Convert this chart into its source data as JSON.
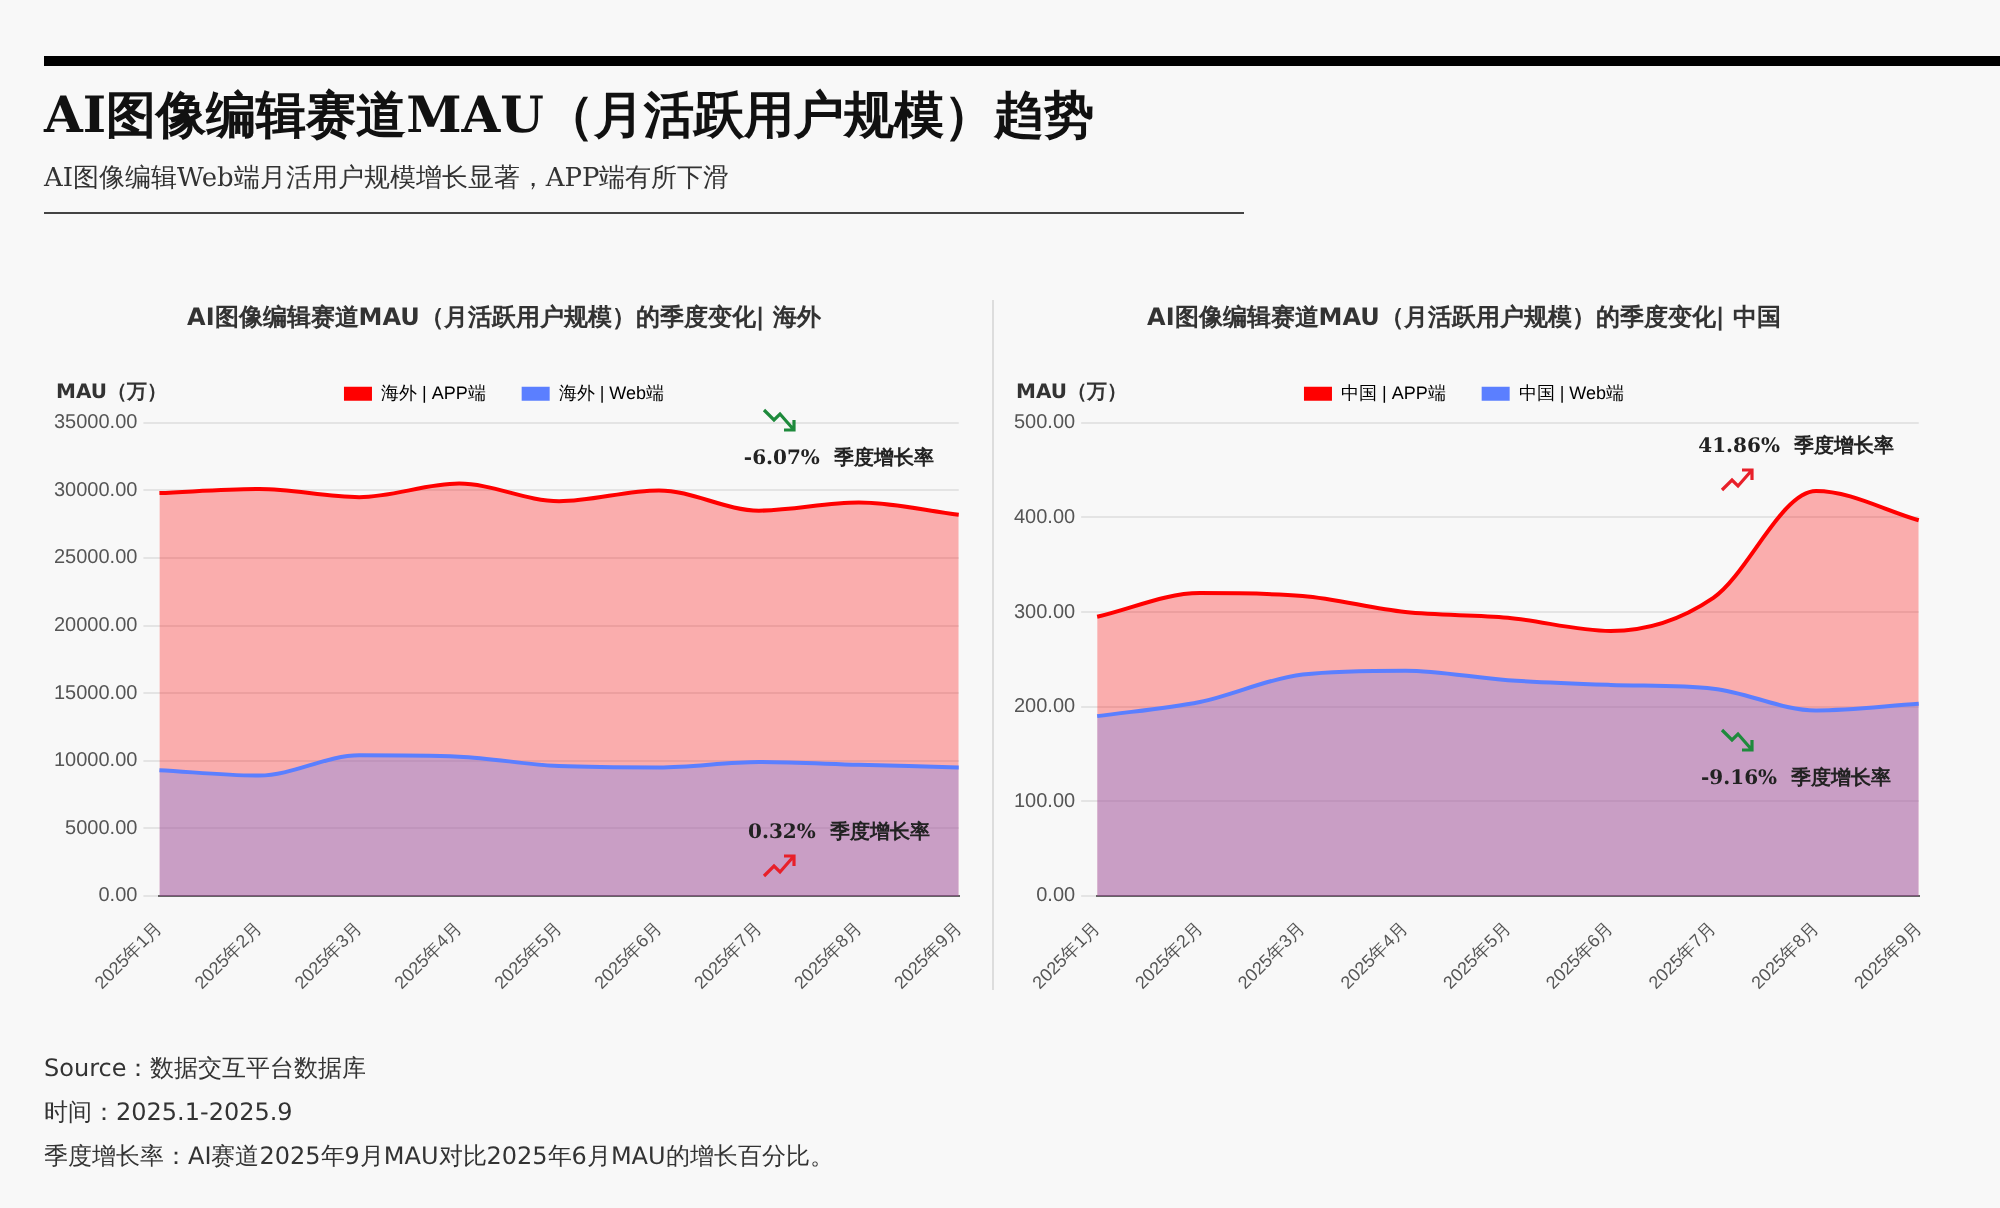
{
  "chart_data": [
    {
      "type": "other",
      "title": "AI图像编辑赛道MAU（月活跃用户规模）趋势",
      "subtitle": "AI图像编辑Web端月活用户规模增长显著，APP端有所下滑",
      "annotations": [
        "Source：数据交互平台数据库",
        "时间：2025.1-2025.9",
        "季度增长率：AI赛道2025年9月MAU对比2025年6月MAU的增长百分比。"
      ]
    },
    {
      "type": "area",
      "title": "AI图像编辑赛道MAU（月活跃用户规模）的季度变化| 海外",
      "ylabel": "MAU（万）",
      "categories": [
        "2025年1月",
        "2025年2月",
        "2025年3月",
        "2025年4月",
        "2025年5月",
        "2025年6月",
        "2025年7月",
        "2025年8月",
        "2025年9月"
      ],
      "series": [
        {
          "name": "海外 | APP端",
          "color": "#ff0000",
          "values": [
            29800,
            30100,
            29500,
            30500,
            29200,
            30000,
            28500,
            29100,
            28200
          ]
        },
        {
          "name": "海外 | Web端",
          "color": "#5b7fff",
          "values": [
            9300,
            8900,
            10400,
            10300,
            9600,
            9500,
            9900,
            9700,
            9500
          ]
        }
      ],
      "ylim": [
        0,
        35000
      ],
      "yticks": [
        {
          "value": 0,
          "label": "0.00"
        },
        {
          "value": 5000,
          "label": "5000.00"
        },
        {
          "value": 10000,
          "label": "10000.00"
        },
        {
          "value": 15000,
          "label": "15000.00"
        },
        {
          "value": 20000,
          "label": "20000.00"
        },
        {
          "value": 25000,
          "label": "25000.00"
        },
        {
          "value": 30000,
          "label": "30000.00"
        },
        {
          "value": 35000,
          "label": "35000.00"
        }
      ],
      "annotations": [
        "-6.07%  季度增长率",
        "0.32%  季度增长率"
      ],
      "grid": "y",
      "legend": "top",
      "marker": "none",
      "line_style": "solid"
    },
    {
      "type": "area",
      "title": "AI图像编辑赛道MAU（月活跃用户规模）的季度变化| 中国",
      "ylabel": "MAU（万）",
      "categories": [
        "2025年1月",
        "2025年2月",
        "2025年3月",
        "2025年4月",
        "2025年5月",
        "2025年6月",
        "2025年7月",
        "2025年8月",
        "2025年9月"
      ],
      "series": [
        {
          "name": "中国 | APP端",
          "color": "#ff0000",
          "values": [
            295,
            320,
            317,
            300,
            294,
            280,
            315,
            428,
            397
          ]
        },
        {
          "name": "中国 | Web端",
          "color": "#5b7fff",
          "values": [
            190,
            205,
            234,
            238,
            228,
            223,
            219,
            196,
            203
          ]
        }
      ],
      "ylim": [
        0,
        500
      ],
      "yticks": [
        {
          "value": 0,
          "label": "0.00"
        },
        {
          "value": 100,
          "label": "100.00"
        },
        {
          "value": 200,
          "label": "200.00"
        },
        {
          "value": 300,
          "label": "300.00"
        },
        {
          "value": 400,
          "label": "400.00"
        },
        {
          "value": 500,
          "label": "500.00"
        }
      ],
      "annotations": [
        "41.86%  季度增长率",
        "-9.16%  季度增长率"
      ],
      "grid": "y",
      "legend": "top",
      "marker": "none",
      "line_style": "solid"
    }
  ]
}
